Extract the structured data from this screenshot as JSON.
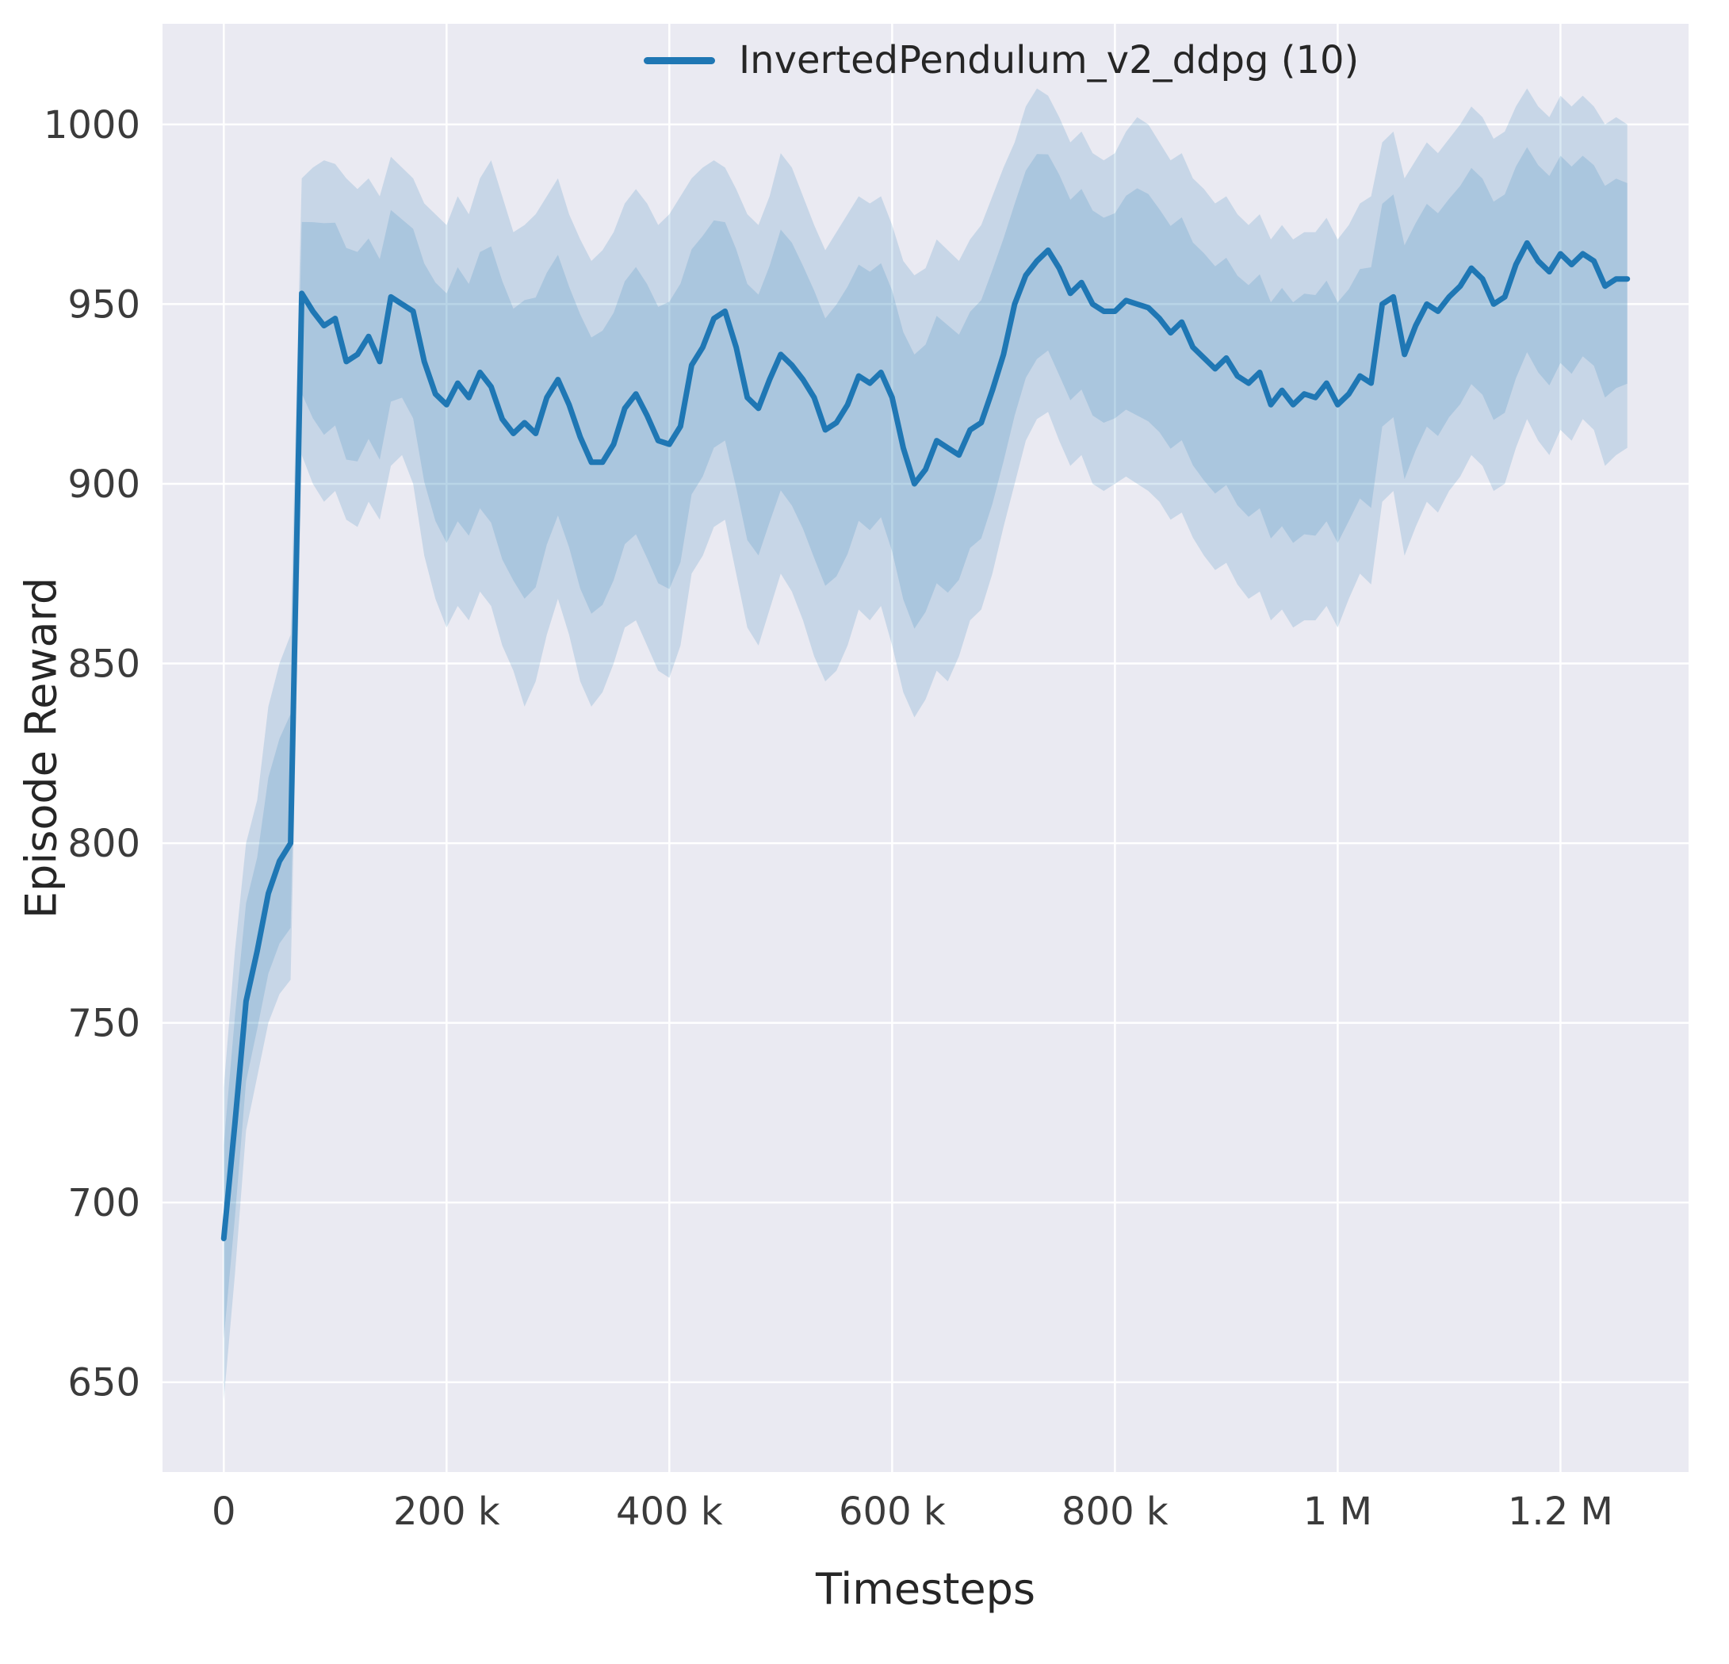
{
  "figure": {
    "background": "#ffffff",
    "plot_background": "#eaeaf2",
    "grid_color": "#ffffff",
    "text_color": "#262626",
    "tick_color": "#3b3b3b"
  },
  "chart_data": {
    "type": "line",
    "title": "",
    "xlabel": "Timesteps",
    "ylabel": "Episode Reward",
    "grid": true,
    "legend_position": "upper right",
    "xlim": [
      -55000,
      1315000
    ],
    "ylim": [
      625,
      1028
    ],
    "xticks": {
      "values": [
        0,
        200000,
        400000,
        600000,
        800000,
        1000000,
        1200000
      ],
      "labels": [
        "0",
        "200 k",
        "400 k",
        "600 k",
        "800 k",
        "1 M",
        "1.2 M"
      ]
    },
    "yticks": {
      "values": [
        650,
        700,
        750,
        800,
        850,
        900,
        950,
        1000
      ],
      "labels": [
        "650",
        "700",
        "750",
        "800",
        "850",
        "900",
        "950",
        "1000"
      ]
    },
    "series": [
      {
        "name": "InvertedPendulum_v2_ddpg (10)",
        "color": "#1f77b4",
        "band_color": "#1f77b4",
        "band_alpha": 0.17,
        "line_width": 7,
        "x": [
          0,
          10000,
          20000,
          30000,
          40000,
          50000,
          60000,
          70000,
          80000,
          90000,
          100000,
          110000,
          120000,
          130000,
          140000,
          150000,
          160000,
          170000,
          180000,
          190000,
          200000,
          210000,
          220000,
          230000,
          240000,
          250000,
          260000,
          270000,
          280000,
          290000,
          300000,
          310000,
          320000,
          330000,
          340000,
          350000,
          360000,
          370000,
          380000,
          390000,
          400000,
          410000,
          420000,
          430000,
          440000,
          450000,
          460000,
          470000,
          480000,
          490000,
          500000,
          510000,
          520000,
          530000,
          540000,
          550000,
          560000,
          570000,
          580000,
          590000,
          600000,
          610000,
          620000,
          630000,
          640000,
          650000,
          660000,
          670000,
          680000,
          690000,
          700000,
          710000,
          720000,
          730000,
          740000,
          750000,
          760000,
          770000,
          780000,
          790000,
          800000,
          810000,
          820000,
          830000,
          840000,
          850000,
          860000,
          870000,
          880000,
          890000,
          900000,
          910000,
          920000,
          930000,
          940000,
          950000,
          960000,
          970000,
          980000,
          990000,
          1000000,
          1010000,
          1020000,
          1030000,
          1040000,
          1050000,
          1060000,
          1070000,
          1080000,
          1090000,
          1100000,
          1110000,
          1120000,
          1130000,
          1140000,
          1150000,
          1160000,
          1170000,
          1180000,
          1190000,
          1200000,
          1210000,
          1220000,
          1230000,
          1240000,
          1250000,
          1260000
        ],
        "mean": [
          690,
          722,
          756,
          770,
          786,
          795,
          800,
          953,
          948,
          944,
          946,
          934,
          936,
          941,
          934,
          952,
          950,
          948,
          934,
          925,
          922,
          928,
          924,
          931,
          927,
          918,
          914,
          917,
          914,
          924,
          929,
          922,
          913,
          906,
          906,
          911,
          921,
          925,
          919,
          912,
          911,
          916,
          933,
          938,
          946,
          948,
          938,
          924,
          921,
          929,
          936,
          933,
          929,
          924,
          915,
          917,
          922,
          930,
          928,
          931,
          924,
          910,
          900,
          904,
          912,
          910,
          908,
          915,
          917,
          926,
          936,
          950,
          958,
          962,
          965,
          960,
          953,
          956,
          950,
          948,
          948,
          951,
          950,
          949,
          946,
          942,
          945,
          938,
          935,
          932,
          935,
          930,
          928,
          931,
          922,
          926,
          922,
          925,
          924,
          928,
          922,
          925,
          930,
          928,
          950,
          952,
          936,
          944,
          950,
          948,
          952,
          955,
          960,
          957,
          950,
          952,
          961,
          967,
          962,
          959,
          964,
          961,
          964,
          962,
          955,
          957,
          957
        ],
        "band_low": [
          645,
          680,
          720,
          735,
          750,
          758,
          762,
          908,
          900,
          895,
          898,
          890,
          888,
          895,
          890,
          905,
          908,
          900,
          880,
          868,
          860,
          866,
          862,
          870,
          866,
          855,
          848,
          838,
          845,
          858,
          868,
          858,
          845,
          838,
          842,
          850,
          860,
          862,
          855,
          848,
          846,
          855,
          875,
          880,
          888,
          890,
          875,
          860,
          855,
          865,
          875,
          870,
          862,
          852,
          845,
          848,
          855,
          865,
          862,
          866,
          855,
          842,
          835,
          840,
          848,
          845,
          852,
          862,
          865,
          875,
          888,
          900,
          912,
          918,
          920,
          912,
          905,
          908,
          900,
          898,
          900,
          902,
          900,
          898,
          895,
          890,
          892,
          885,
          880,
          876,
          878,
          872,
          868,
          870,
          862,
          865,
          860,
          862,
          862,
          866,
          860,
          868,
          875,
          872,
          895,
          898,
          880,
          888,
          895,
          892,
          898,
          902,
          908,
          905,
          898,
          900,
          910,
          918,
          912,
          908,
          915,
          912,
          918,
          915,
          905,
          908,
          910
        ],
        "band_high": [
          732,
          770,
          800,
          812,
          838,
          850,
          858,
          985,
          988,
          990,
          989,
          985,
          982,
          985,
          980,
          991,
          988,
          985,
          978,
          975,
          972,
          980,
          975,
          985,
          990,
          980,
          970,
          972,
          975,
          980,
          985,
          975,
          968,
          962,
          965,
          970,
          978,
          982,
          978,
          972,
          975,
          980,
          985,
          988,
          990,
          988,
          982,
          975,
          972,
          980,
          992,
          988,
          980,
          972,
          965,
          970,
          975,
          980,
          978,
          980,
          972,
          962,
          958,
          960,
          968,
          965,
          962,
          968,
          972,
          980,
          988,
          995,
          1005,
          1010,
          1008,
          1002,
          995,
          998,
          992,
          990,
          992,
          998,
          1002,
          1000,
          995,
          990,
          992,
          985,
          982,
          978,
          980,
          975,
          972,
          975,
          968,
          972,
          968,
          970,
          970,
          974,
          968,
          972,
          978,
          980,
          995,
          998,
          985,
          990,
          995,
          992,
          996,
          1000,
          1005,
          1002,
          996,
          998,
          1005,
          1010,
          1005,
          1002,
          1008,
          1005,
          1008,
          1005,
          1000,
          1002,
          1000
        ]
      }
    ]
  }
}
